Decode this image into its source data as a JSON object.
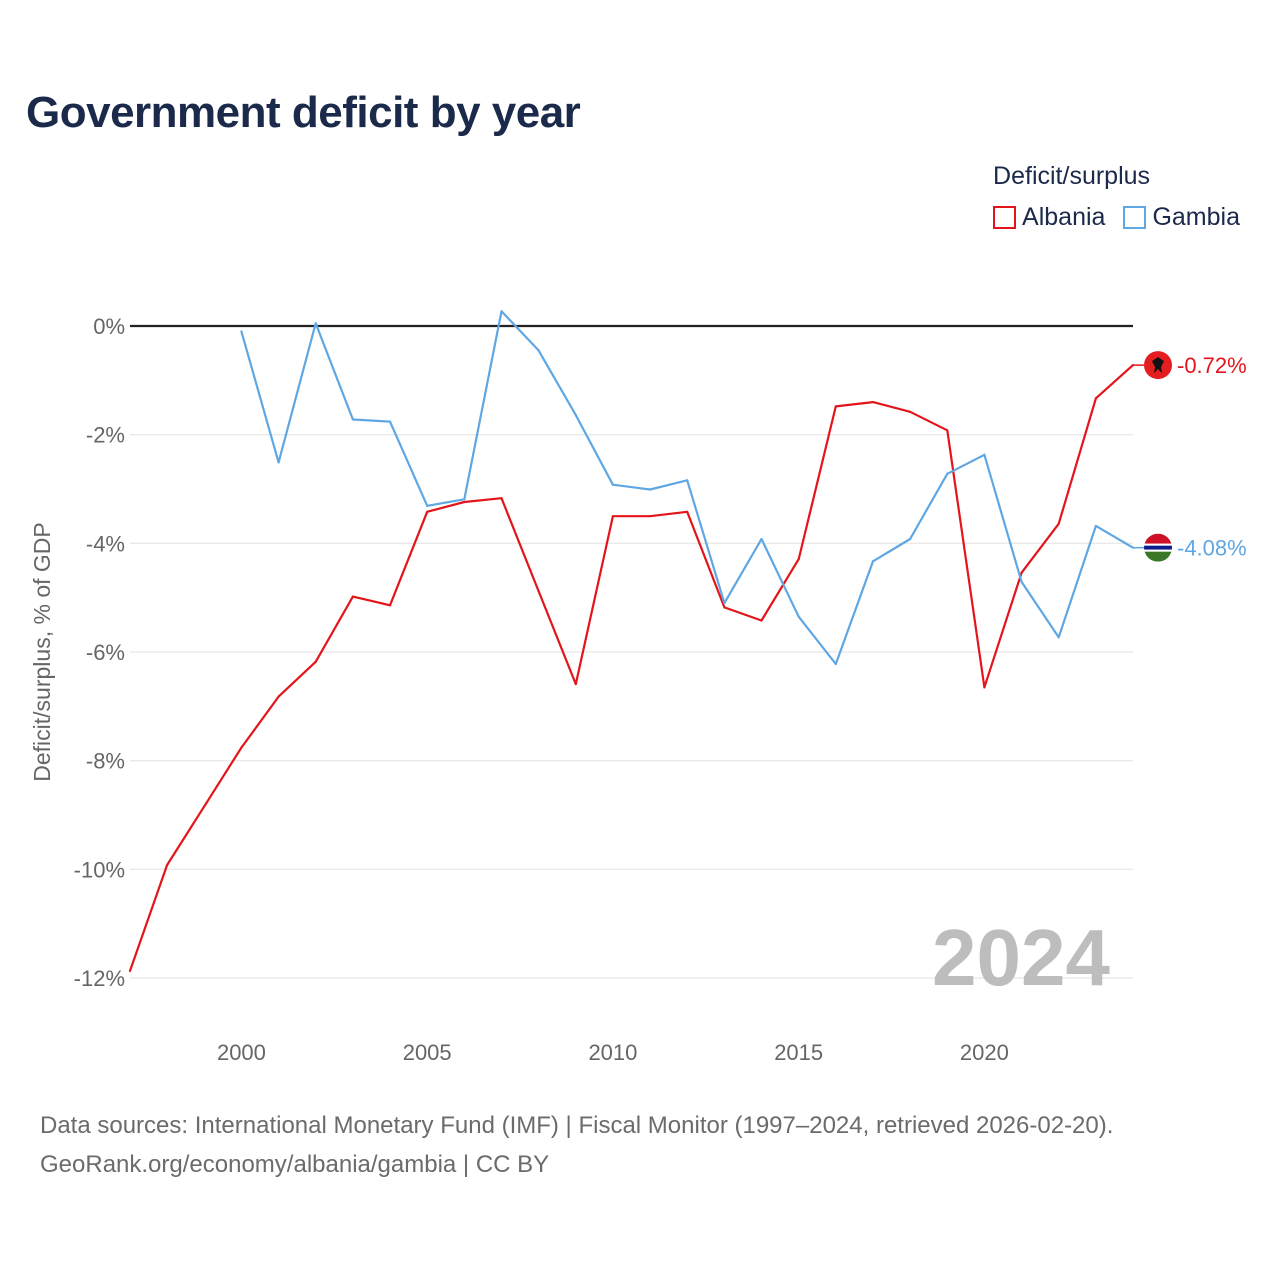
{
  "title": "Government deficit by year",
  "legend": {
    "title": "Deficit/surplus",
    "items": [
      {
        "label": "Albania",
        "color": "#e3151a"
      },
      {
        "label": "Gambia",
        "color": "#5fa7e3"
      }
    ]
  },
  "chart_data": {
    "type": "line",
    "title": "Government deficit by year",
    "xlabel": "",
    "ylabel": "Deficit/surplus, % of GDP",
    "xlim": [
      1997,
      2024
    ],
    "ylim": [
      -12.6,
      1.2
    ],
    "xticks": [
      2000,
      2005,
      2010,
      2015,
      2020
    ],
    "xtick_labels": [
      "2000",
      "2005",
      "2010",
      "2015",
      "2020"
    ],
    "yticks": [
      0,
      -2,
      -4,
      -6,
      -8,
      -10,
      -12
    ],
    "ytick_labels": [
      "0%",
      "-2%",
      "-4%",
      "-6%",
      "-8%",
      "-10%",
      "-12%"
    ],
    "watermark_year": "2024",
    "series": [
      {
        "name": "Albania",
        "color": "#e3151a",
        "end_label": "-0.72%",
        "x": [
          1997,
          1998,
          1999,
          2000,
          2001,
          2002,
          2003,
          2004,
          2005,
          2006,
          2007,
          2008,
          2009,
          2010,
          2011,
          2012,
          2013,
          2014,
          2015,
          2016,
          2017,
          2018,
          2019,
          2020,
          2021,
          2022,
          2023,
          2024
        ],
        "values": [
          -11.87,
          -9.92,
          -8.84,
          -7.76,
          -6.82,
          -6.18,
          -4.98,
          -5.14,
          -3.42,
          -3.24,
          -3.17,
          -4.88,
          -6.59,
          -3.5,
          -3.5,
          -3.42,
          -5.18,
          -5.42,
          -4.29,
          -1.48,
          -1.4,
          -1.58,
          -1.92,
          -6.65,
          -4.54,
          -3.64,
          -1.33,
          -0.72
        ]
      },
      {
        "name": "Gambia",
        "color": "#5fa7e3",
        "end_label": "-4.08%",
        "x": [
          2000,
          2001,
          2002,
          2003,
          2004,
          2005,
          2006,
          2007,
          2008,
          2009,
          2010,
          2011,
          2012,
          2013,
          2014,
          2015,
          2016,
          2017,
          2018,
          2019,
          2020,
          2021,
          2022,
          2023,
          2024
        ],
        "values": [
          -0.1,
          -2.51,
          0.05,
          -1.72,
          -1.76,
          -3.31,
          -3.19,
          0.27,
          -0.45,
          -1.64,
          -2.92,
          -3.01,
          -2.84,
          -5.1,
          -3.92,
          -5.35,
          -6.22,
          -4.33,
          -3.92,
          -2.72,
          -2.37,
          -4.71,
          -5.73,
          -3.68,
          -4.08
        ]
      }
    ]
  },
  "source": {
    "line1": "Data sources: International Monetary Fund (IMF) | Fiscal Monitor (1997–2024, retrieved 2026-02-20).",
    "line2": "GeoRank.org/economy/albania/gambia | CC BY"
  }
}
